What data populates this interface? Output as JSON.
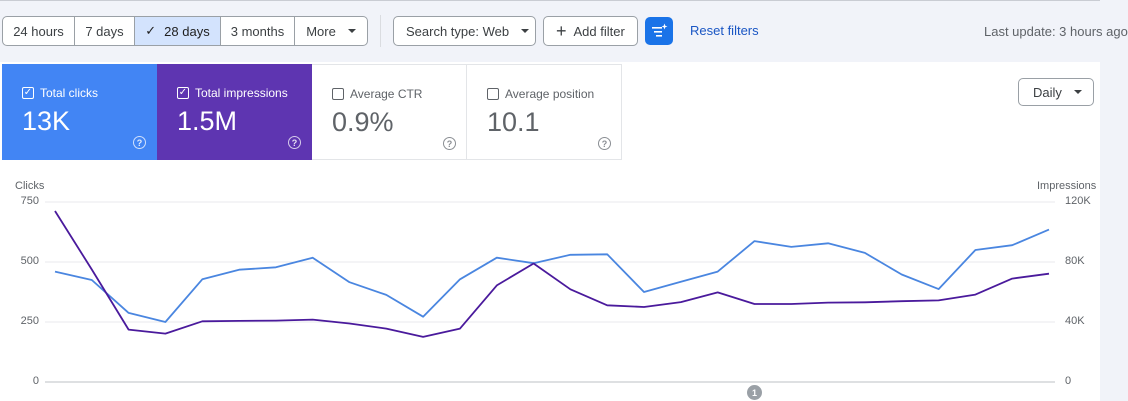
{
  "filters": {
    "date_ranges": [
      {
        "label": "24 hours",
        "active": false
      },
      {
        "label": "7 days",
        "active": false
      },
      {
        "label": "28 days",
        "active": true
      },
      {
        "label": "3 months",
        "active": false
      }
    ],
    "more_label": "More",
    "search_type_label": "Search type: Web",
    "add_filter_label": "Add filter",
    "reset_label": "Reset filters",
    "last_update": "Last update: 3 hours ago"
  },
  "metrics": [
    {
      "label": "Total clicks",
      "value": "13K",
      "checked": true,
      "color": "#4285f4"
    },
    {
      "label": "Total impressions",
      "value": "1.5M",
      "checked": true,
      "color": "#5e35b1"
    },
    {
      "label": "Average CTR",
      "value": "0.9%",
      "checked": false
    },
    {
      "label": "Average position",
      "value": "10.1",
      "checked": false
    }
  ],
  "granularity": "Daily",
  "colors": {
    "accent": "#1a73e8",
    "clicks": "#4a86e0",
    "impressions": "#4a1a9c",
    "active_range_bg": "#d3e3fd"
  },
  "chart_data": {
    "type": "line",
    "left_axis": {
      "label": "Clicks",
      "ticks": [
        "750",
        "500",
        "250",
        "0"
      ],
      "range": [
        0,
        750
      ]
    },
    "right_axis": {
      "label": "Impressions",
      "ticks": [
        "120K",
        "80K",
        "40K",
        "0"
      ],
      "range": [
        0,
        120000
      ]
    },
    "annotation": "1",
    "series": [
      {
        "name": "Clicks",
        "axis": "left",
        "color": "#4a86e0",
        "values": [
          460,
          425,
          288,
          250,
          428,
          468,
          478,
          518,
          416,
          363,
          272,
          428,
          518,
          495,
          530,
          532,
          375,
          418,
          460,
          587,
          563,
          578,
          538,
          448,
          387,
          550,
          570,
          635
        ]
      },
      {
        "name": "Impressions",
        "axis": "right",
        "color": "#4a1a9c",
        "values": [
          114000,
          75000,
          34900,
          32300,
          40500,
          40700,
          40900,
          41600,
          39000,
          35600,
          30100,
          35600,
          64400,
          79000,
          61800,
          51100,
          50000,
          53300,
          59700,
          52000,
          52000,
          52900,
          53100,
          53900,
          54400,
          58300,
          68900,
          72200
        ]
      }
    ]
  }
}
